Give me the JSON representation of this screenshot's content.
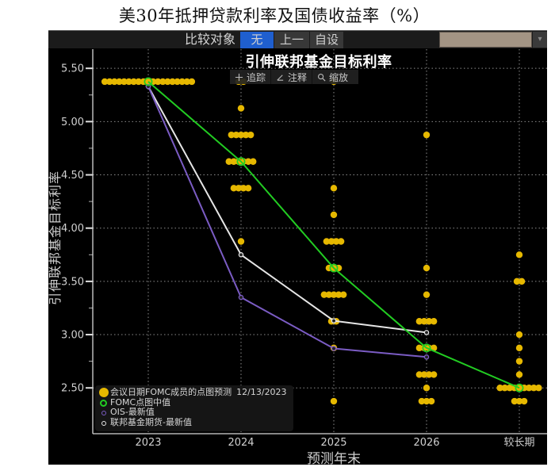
{
  "page": {
    "title": "美30年抵押贷款利率及国债收益率（%）"
  },
  "header": {
    "compare_label": "比较对象",
    "buttons": [
      {
        "label": "无",
        "active": true
      },
      {
        "label": "上一",
        "active": false
      },
      {
        "label": "自设",
        "active": false
      }
    ],
    "active_color": "#1f5fcf",
    "dropdown": {
      "value": "",
      "field_color": "#a39484",
      "icon": "▾"
    }
  },
  "toolbar": {
    "items": [
      {
        "label": "追踪",
        "icon": "crosshair-icon"
      },
      {
        "label": "注释",
        "icon": "pencil-icon"
      },
      {
        "label": "缩放",
        "icon": "magnifier-icon"
      }
    ]
  },
  "legend": {
    "items": [
      {
        "label": "会议日期FOMC成员的点图预测",
        "date": "12/13/2023",
        "marker": "filled-circle",
        "color": "#e6b800"
      },
      {
        "label": "FOMC点图中值",
        "marker": "ring",
        "color": "#22cc22"
      },
      {
        "label": "OIS-最新值",
        "marker": "small-ring",
        "color": "#7b5cc4"
      },
      {
        "label": "联邦基金期货-最新值",
        "marker": "small-ring",
        "color": "#e6e6e6"
      }
    ]
  },
  "chart_data": {
    "type": "scatter",
    "title": "引伸联邦基金目标利率",
    "xlabel": "预测年末",
    "ylabel": "引伸联邦基金目标利率",
    "categories": [
      "2023",
      "2024",
      "2025",
      "2026",
      "较长期"
    ],
    "ylim": [
      2.07,
      5.68
    ],
    "yticks": [
      "5.50",
      "5.00",
      "4.50",
      "4.00",
      "3.50",
      "3.00",
      "2.50"
    ],
    "yminor": [
      5.25,
      4.75,
      4.25,
      3.75,
      3.25,
      2.75
    ],
    "grid": true,
    "legend_position": "bottom-left",
    "series": [
      {
        "name": "会议日期FOMC成员的点图预测 12/13/2023",
        "type": "dot",
        "color": "#e6b800",
        "dots": [
          [
            {
              "rate": 5.375,
              "count": 19
            }
          ],
          [
            {
              "rate": 5.375,
              "count": 2
            },
            {
              "rate": 5.125,
              "count": 1
            },
            {
              "rate": 4.875,
              "count": 5
            },
            {
              "rate": 4.625,
              "count": 6
            },
            {
              "rate": 4.375,
              "count": 4
            },
            {
              "rate": 3.875,
              "count": 1
            }
          ],
          [
            {
              "rate": 5.375,
              "count": 1
            },
            {
              "rate": 4.375,
              "count": 1
            },
            {
              "rate": 4.125,
              "count": 1
            },
            {
              "rate": 3.875,
              "count": 4
            },
            {
              "rate": 3.625,
              "count": 3
            },
            {
              "rate": 3.375,
              "count": 5
            },
            {
              "rate": 3.125,
              "count": 2
            },
            {
              "rate": 2.875,
              "count": 1
            },
            {
              "rate": 2.375,
              "count": 1
            }
          ],
          [
            {
              "rate": 4.875,
              "count": 1
            },
            {
              "rate": 3.625,
              "count": 1
            },
            {
              "rate": 3.375,
              "count": 1
            },
            {
              "rate": 3.125,
              "count": 4
            },
            {
              "rate": 2.875,
              "count": 4
            },
            {
              "rate": 2.625,
              "count": 4
            },
            {
              "rate": 2.5,
              "count": 1
            },
            {
              "rate": 2.375,
              "count": 3
            }
          ],
          [
            {
              "rate": 3.75,
              "count": 1
            },
            {
              "rate": 3.5,
              "count": 2
            },
            {
              "rate": 3.0,
              "count": 1
            },
            {
              "rate": 2.875,
              "count": 1
            },
            {
              "rate": 2.75,
              "count": 1
            },
            {
              "rate": 2.625,
              "count": 1
            },
            {
              "rate": 2.5,
              "count": 9
            },
            {
              "rate": 2.375,
              "count": 3
            }
          ]
        ]
      },
      {
        "name": "FOMC点图中值",
        "type": "line",
        "marker": "ring",
        "color": "#22cc22",
        "values": [
          5.375,
          4.625,
          3.625,
          2.875,
          2.5
        ]
      },
      {
        "name": "OIS-最新值",
        "type": "line",
        "marker": "small-ring",
        "color": "#7b5cc4",
        "values": [
          5.33,
          3.35,
          2.87,
          2.79,
          null
        ]
      },
      {
        "name": "联邦基金期货-最新值",
        "type": "line",
        "marker": "small-ring",
        "color": "#e6e6e6",
        "values": [
          5.33,
          3.75,
          3.13,
          3.02,
          null
        ]
      }
    ]
  }
}
